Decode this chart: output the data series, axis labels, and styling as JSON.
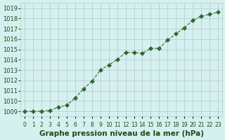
{
  "x": [
    0,
    1,
    2,
    3,
    4,
    5,
    6,
    7,
    8,
    9,
    10,
    11,
    12,
    13,
    14,
    15,
    16,
    17,
    18,
    19,
    20,
    21,
    22,
    23
  ],
  "y": [
    1009.0,
    1009.0,
    1009.0,
    1009.1,
    1009.4,
    1009.6,
    1010.3,
    1011.2,
    1011.9,
    1013.0,
    1013.5,
    1014.0,
    1014.7,
    1014.7,
    1014.6,
    1015.1,
    1015.1,
    1015.9,
    1016.5,
    1017.1,
    1017.8,
    1018.2,
    1018.4,
    1018.6
  ],
  "line_color": "#2d6a2d",
  "marker": "D",
  "marker_size": 3,
  "bg_color": "#d6f0f0",
  "grid_color": "#b0c8c8",
  "ylabel_ticks": [
    1009,
    1010,
    1011,
    1012,
    1013,
    1014,
    1015,
    1016,
    1017,
    1018,
    1019
  ],
  "xlabel_label": "Graphe pression niveau de la mer (hPa)",
  "ylim": [
    1008.5,
    1019.5
  ],
  "xlim": [
    -0.5,
    23.5
  ],
  "title_color": "#1a4d1a",
  "label_fontsize": 7.5,
  "tick_fontsize": 6.0
}
